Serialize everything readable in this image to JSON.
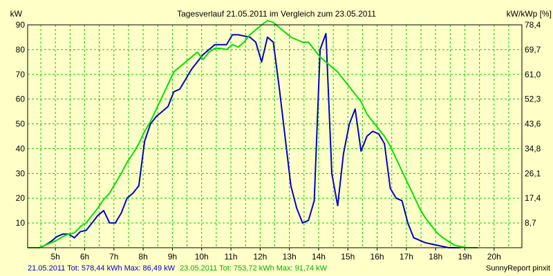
{
  "chart_data": {
    "type": "line",
    "title": "Tagesverlauf 21.05.2011 im Vergleich zum 23.05.2011",
    "ylabel_left": "kW",
    "ylabel_right": "kW/kWp [%]",
    "xlim": [
      4.05,
      20.95
    ],
    "ylim": [
      0,
      90
    ],
    "y_ticks_left": [
      10,
      20,
      30,
      40,
      50,
      60,
      70,
      80,
      90
    ],
    "y_ticks_right": [
      "8,7",
      "17,4",
      "26,1",
      "34,8",
      "43,6",
      "52,3",
      "61,0",
      "69,7",
      "78,4"
    ],
    "x_ticks": [
      {
        "value": 5,
        "label": "5h"
      },
      {
        "value": 6,
        "label": "6h"
      },
      {
        "value": 7,
        "label": "7h"
      },
      {
        "value": 8,
        "label": "8h"
      },
      {
        "value": 9,
        "label": "9h"
      },
      {
        "value": 10,
        "label": "10h"
      },
      {
        "value": 11,
        "label": "11h"
      },
      {
        "value": 12,
        "label": "12h"
      },
      {
        "value": 13,
        "label": "13h"
      },
      {
        "value": 14,
        "label": "14h"
      },
      {
        "value": 15,
        "label": "15h"
      },
      {
        "value": 16,
        "label": "16h"
      },
      {
        "value": 17,
        "label": "17h"
      },
      {
        "value": 18,
        "label": "18h"
      },
      {
        "value": 19,
        "label": "19h"
      },
      {
        "value": 20,
        "label": "20h"
      }
    ],
    "grid": true,
    "colors": {
      "background": "#FFFFC8",
      "grid": "#00CC00",
      "series_blue": "#0000CC",
      "series_green": "#00E000",
      "axis": "#000000"
    },
    "series": [
      {
        "name": "21.05.2011",
        "color": "#0000CC",
        "points": [
          [
            4.05,
            0
          ],
          [
            4.45,
            0
          ],
          [
            4.65,
            1
          ],
          [
            4.85,
            2.5
          ],
          [
            5.05,
            4.5
          ],
          [
            5.25,
            5.5
          ],
          [
            5.45,
            5.5
          ],
          [
            5.65,
            4
          ],
          [
            5.85,
            6.5
          ],
          [
            6.05,
            7
          ],
          [
            6.25,
            10
          ],
          [
            6.45,
            13
          ],
          [
            6.65,
            15
          ],
          [
            6.85,
            10
          ],
          [
            7.05,
            10
          ],
          [
            7.25,
            14
          ],
          [
            7.45,
            20
          ],
          [
            7.65,
            22
          ],
          [
            7.85,
            25
          ],
          [
            8.05,
            43
          ],
          [
            8.25,
            50
          ],
          [
            8.45,
            53
          ],
          [
            8.65,
            55
          ],
          [
            8.85,
            57
          ],
          [
            9.05,
            63
          ],
          [
            9.25,
            64
          ],
          [
            9.45,
            68
          ],
          [
            9.65,
            72
          ],
          [
            9.85,
            75
          ],
          [
            10.05,
            78
          ],
          [
            10.25,
            80
          ],
          [
            10.45,
            82
          ],
          [
            10.65,
            82
          ],
          [
            10.85,
            82
          ],
          [
            11.05,
            86
          ],
          [
            11.25,
            86
          ],
          [
            11.45,
            85.5
          ],
          [
            11.65,
            85
          ],
          [
            11.85,
            83
          ],
          [
            12.05,
            75
          ],
          [
            12.25,
            85
          ],
          [
            12.45,
            83
          ],
          [
            12.65,
            65
          ],
          [
            12.85,
            45
          ],
          [
            13.05,
            25
          ],
          [
            13.25,
            16
          ],
          [
            13.45,
            10
          ],
          [
            13.65,
            11
          ],
          [
            13.85,
            19
          ],
          [
            14.05,
            80
          ],
          [
            14.25,
            86.5
          ],
          [
            14.45,
            30
          ],
          [
            14.65,
            17
          ],
          [
            14.85,
            38
          ],
          [
            15.05,
            50
          ],
          [
            15.25,
            56
          ],
          [
            15.45,
            39
          ],
          [
            15.65,
            45
          ],
          [
            15.85,
            47
          ],
          [
            16.05,
            46
          ],
          [
            16.25,
            42
          ],
          [
            16.45,
            24
          ],
          [
            16.65,
            20
          ],
          [
            16.85,
            19
          ],
          [
            17.05,
            10
          ],
          [
            17.25,
            4
          ],
          [
            17.45,
            3
          ],
          [
            17.65,
            2
          ],
          [
            17.85,
            1.5
          ],
          [
            18.05,
            1
          ],
          [
            18.25,
            0.5
          ],
          [
            18.45,
            0
          ],
          [
            18.65,
            0
          ],
          [
            18.85,
            0
          ]
        ]
      },
      {
        "name": "23.05.2011",
        "color": "#00E000",
        "points": [
          [
            4.05,
            0
          ],
          [
            4.45,
            0
          ],
          [
            4.65,
            1
          ],
          [
            4.85,
            2
          ],
          [
            5.05,
            3
          ],
          [
            5.25,
            4.5
          ],
          [
            5.45,
            5.5
          ],
          [
            5.65,
            6
          ],
          [
            5.85,
            8.5
          ],
          [
            6.05,
            10
          ],
          [
            6.25,
            13
          ],
          [
            6.45,
            16
          ],
          [
            6.65,
            19.5
          ],
          [
            6.85,
            22
          ],
          [
            7.05,
            26
          ],
          [
            7.25,
            30
          ],
          [
            7.45,
            34.5
          ],
          [
            7.65,
            38
          ],
          [
            7.85,
            42
          ],
          [
            8.05,
            47
          ],
          [
            8.25,
            51
          ],
          [
            8.45,
            56
          ],
          [
            8.65,
            61
          ],
          [
            8.85,
            66
          ],
          [
            9.05,
            71
          ],
          [
            9.25,
            73
          ],
          [
            9.45,
            75
          ],
          [
            9.65,
            77
          ],
          [
            9.85,
            79
          ],
          [
            10.05,
            76
          ],
          [
            10.25,
            79
          ],
          [
            10.45,
            80.5
          ],
          [
            10.65,
            80.5
          ],
          [
            10.85,
            80
          ],
          [
            11.05,
            82
          ],
          [
            11.25,
            81
          ],
          [
            11.45,
            83
          ],
          [
            11.65,
            86
          ],
          [
            11.85,
            88
          ],
          [
            12.05,
            90
          ],
          [
            12.25,
            91.7
          ],
          [
            12.45,
            91
          ],
          [
            12.65,
            89
          ],
          [
            12.85,
            87
          ],
          [
            13.05,
            85
          ],
          [
            13.25,
            84
          ],
          [
            13.45,
            83
          ],
          [
            13.65,
            83
          ],
          [
            13.85,
            80
          ],
          [
            14.05,
            77
          ],
          [
            14.25,
            75
          ],
          [
            14.45,
            73
          ],
          [
            14.65,
            71
          ],
          [
            14.85,
            68
          ],
          [
            15.05,
            65
          ],
          [
            15.25,
            62
          ],
          [
            15.45,
            59
          ],
          [
            15.65,
            54
          ],
          [
            15.85,
            51
          ],
          [
            16.05,
            48
          ],
          [
            16.25,
            45
          ],
          [
            16.45,
            41
          ],
          [
            16.65,
            36
          ],
          [
            16.85,
            31
          ],
          [
            17.05,
            26
          ],
          [
            17.25,
            21
          ],
          [
            17.45,
            16
          ],
          [
            17.65,
            12
          ],
          [
            17.85,
            9
          ],
          [
            18.05,
            6
          ],
          [
            18.25,
            4
          ],
          [
            18.45,
            2.5
          ],
          [
            18.65,
            1
          ],
          [
            18.85,
            0.5
          ],
          [
            19.05,
            0
          ],
          [
            19.45,
            0
          ]
        ]
      }
    ],
    "footer_left": {
      "blue_text": "21.05.2011 Tot: 578,44 kWh Max: 86,49 kW",
      "green_text": "23.05.2011 Tot: 753,72 kWh Max: 91,74 kW"
    },
    "footer_right": "SunnyReport pinxit"
  }
}
